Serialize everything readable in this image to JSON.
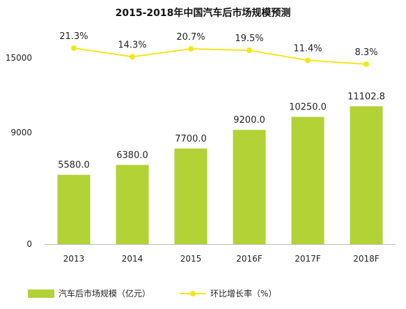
{
  "chart_data": {
    "type": "bar+line",
    "title": "2015-2018年中国汽车后市场规模预测",
    "categories": [
      "2013",
      "2014",
      "2015",
      "2016F",
      "2017F",
      "2018F"
    ],
    "series": [
      {
        "name": "汽车后市场规模（亿元）",
        "type": "bar",
        "axis": "left",
        "values": [
          5580.0,
          6380.0,
          7700.0,
          9200.0,
          10250.0,
          11102.8
        ],
        "labels": [
          "5580.0",
          "6380.0",
          "7700.0",
          "9200.0",
          "10250.0",
          "11102.8"
        ],
        "color": "#b2d235"
      },
      {
        "name": "环比增长率（%）",
        "type": "line",
        "axis": "right",
        "values": [
          21.3,
          14.3,
          20.7,
          19.5,
          11.4,
          8.3
        ],
        "labels": [
          "21.3%",
          "14.3%",
          "20.7%",
          "19.5%",
          "11.4%",
          "8.3%"
        ],
        "color": "#f5e61a"
      }
    ],
    "y_ticks": [
      "0",
      "9000",
      "15000"
    ],
    "y_tick_values": [
      0,
      9000,
      15000
    ],
    "ylim": [
      0,
      15000
    ],
    "legend_position": "bottom",
    "grid": false
  }
}
